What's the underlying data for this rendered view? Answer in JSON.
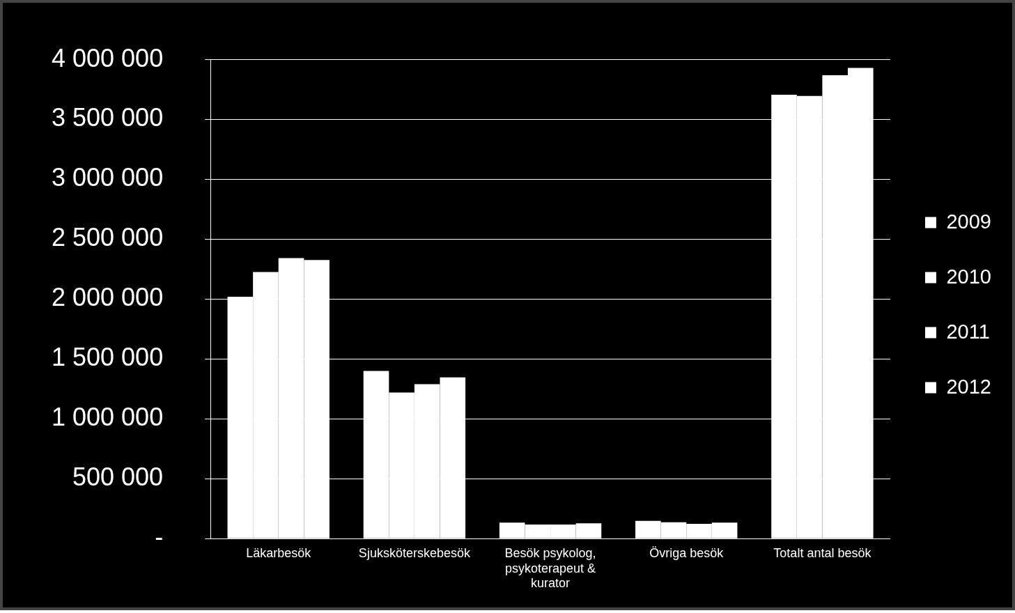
{
  "chart_data": {
    "type": "bar",
    "categories": [
      "Läkarbesök",
      "Sjuksköterskebesök",
      "Besök psykolog, psykoterapeut & kurator",
      "Övriga besök",
      "Totalt antal besök"
    ],
    "series": [
      {
        "name": "2009",
        "color": "#ffffff",
        "values": [
          2020000,
          1400000,
          133000,
          148000,
          3707000
        ]
      },
      {
        "name": "2010",
        "color": "#ffffff",
        "values": [
          2226000,
          1220000,
          118000,
          137000,
          3696000
        ]
      },
      {
        "name": "2011",
        "color": "#ffffff",
        "values": [
          2343000,
          1290000,
          118000,
          123000,
          3869000
        ]
      },
      {
        "name": "2012",
        "color": "#ffffff",
        "values": [
          2327000,
          1346000,
          127000,
          133000,
          3931000
        ]
      }
    ],
    "ylim": [
      0,
      4000000
    ],
    "yticks": [
      {
        "value": 0,
        "label": "-"
      },
      {
        "value": 500000,
        "label": "500 000"
      },
      {
        "value": 1000000,
        "label": "1 000 000"
      },
      {
        "value": 1500000,
        "label": "1 500 000"
      },
      {
        "value": 2000000,
        "label": "2 000 000"
      },
      {
        "value": 2500000,
        "label": "2 500 000"
      },
      {
        "value": 3000000,
        "label": "3 000 000"
      },
      {
        "value": 3500000,
        "label": "3 500 000"
      },
      {
        "value": 4000000,
        "label": "4 000 000"
      }
    ],
    "grid": "y",
    "legend": "right"
  }
}
